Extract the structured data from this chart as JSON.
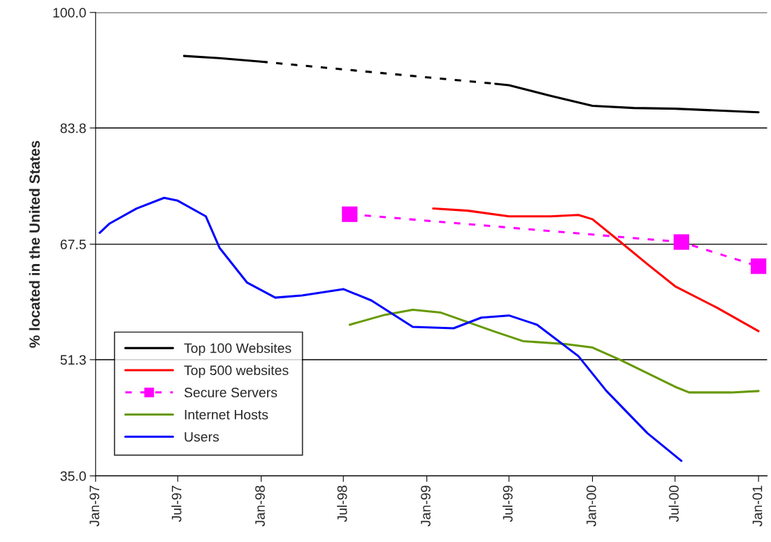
{
  "chart_data": {
    "type": "line",
    "ylabel": "% located in the United States",
    "xlim": [
      "1997-01-01",
      "2001-01-20"
    ],
    "ylim": [
      35,
      100
    ],
    "yticks": [
      {
        "value": 35,
        "label": "35.0"
      },
      51.3,
      67.5,
      83.8,
      {
        "value": 100,
        "label": "100.0"
      }
    ],
    "xticks": [
      {
        "value": "1997-01",
        "label": "Jan-97"
      },
      {
        "value": "1997-07",
        "label": "Jul-97"
      },
      {
        "value": "1998-01",
        "label": "Jan-98"
      },
      {
        "value": "1998-07",
        "label": "Jul-98"
      },
      {
        "value": "1999-01",
        "label": "Jan-99"
      },
      {
        "value": "1999-07",
        "label": "Jul-99"
      },
      {
        "value": "2000-01",
        "label": "Jan-00"
      },
      {
        "value": "2000-07",
        "label": "Jul-00"
      },
      {
        "value": "2001-01",
        "label": "Jan-01"
      }
    ],
    "grid": "y",
    "legend": "bottom left",
    "line_style": "solid",
    "marker": "none",
    "series": [
      {
        "name": "Top 100 Websites",
        "color": "#000000",
        "x": [
          "1997-07-15",
          "1997-10",
          "1998-01"
        ],
        "values": [
          93.9,
          93.6,
          93.1
        ]
      },
      {
        "color": "#000000",
        "line_style": "dashed",
        "x": [
          "1998-01",
          "1999-06"
        ],
        "values": [
          93.1,
          90.0
        ]
      },
      {
        "color": "#000000",
        "x": [
          "1999-06",
          "1999-07",
          "1999-10",
          "2000-01",
          "2000-04",
          "2000-07",
          "2001-01"
        ],
        "values": [
          90.0,
          89.8,
          88.3,
          86.9,
          86.6,
          86.5,
          86.0
        ]
      },
      {
        "name": "Top 500 websites",
        "color": "#ff0000",
        "x": [
          "1999-01-15",
          "1999-04",
          "1999-07",
          "1999-10",
          "1999-12",
          "2000-01",
          "2000-03",
          "2000-05",
          "2000-07",
          "2000-10",
          "2001-01"
        ],
        "values": [
          72.5,
          72.2,
          71.4,
          71.4,
          71.6,
          71.0,
          67.9,
          64.7,
          61.6,
          58.6,
          55.3
        ]
      },
      {
        "name": "Secure Servers",
        "color": "#ff00ff",
        "line_style": "dashed",
        "marker": "square",
        "x": [
          "1998-07-15",
          "2000-07-15",
          "2001-01"
        ],
        "values": [
          71.7,
          67.8,
          64.4
        ]
      },
      {
        "name": "Internet Hosts",
        "color": "#669900",
        "x": [
          "1998-07-15",
          "1998-10",
          "1998-12",
          "1999-02",
          "1999-06",
          "1999-08",
          "1999-11",
          "2000-01",
          "2000-03",
          "2000-07",
          "2000-08",
          "2000-11",
          "2001-01"
        ],
        "values": [
          56.2,
          57.6,
          58.3,
          57.9,
          55.2,
          53.9,
          53.5,
          53.0,
          51.3,
          47.5,
          46.7,
          46.7,
          46.9
        ]
      },
      {
        "name": "Users",
        "color": "#0000ff",
        "x": [
          "1997-01-10",
          "1997-02",
          "1997-04",
          "1997-06",
          "1997-07",
          "1997-09",
          "1997-10",
          "1997-12",
          "1998-02",
          "1998-04",
          "1998-07",
          "1998-09",
          "1998-12",
          "1999-03",
          "1999-05",
          "1999-07",
          "1999-09",
          "1999-12",
          "2000-02",
          "2000-05",
          "2000-07-15"
        ],
        "values": [
          69.1,
          70.4,
          72.5,
          74.0,
          73.6,
          71.4,
          67.0,
          62.1,
          60.0,
          60.3,
          61.2,
          59.6,
          55.9,
          55.7,
          57.2,
          57.5,
          56.2,
          51.8,
          46.9,
          41.0,
          37.1
        ]
      }
    ]
  }
}
